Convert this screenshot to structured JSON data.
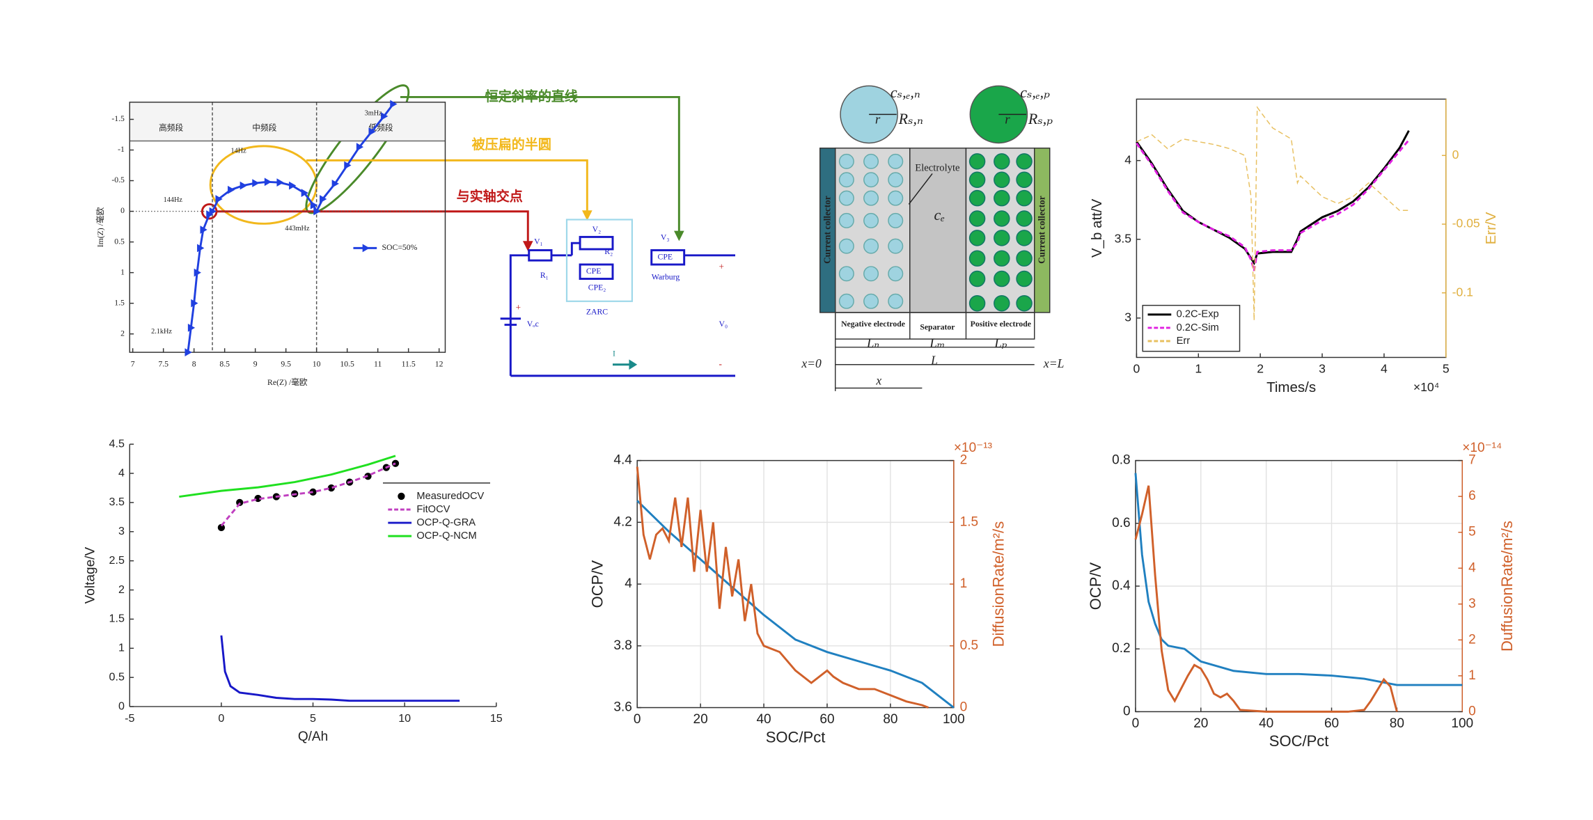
{
  "chart_data": [
    {
      "type": "line",
      "x_label": "Re(Z) /毫欧",
      "y_label": "Im(Z) /毫欧",
      "y_inverted": true,
      "xlim": [
        6.95,
        12.1
      ],
      "xticks": [
        7,
        7.5,
        8,
        8.5,
        9,
        9.5,
        10,
        10.5,
        11,
        11.5,
        12
      ],
      "ylim": [
        -1.78,
        2.3
      ],
      "yticks": [
        -1.5,
        -1,
        -0.5,
        0,
        0.5,
        1,
        1.5,
        2
      ],
      "regions": [
        {
          "label": "高频段",
          "from": 6.95,
          "to": 8.3
        },
        {
          "label": "中频段",
          "from": 8.3,
          "to": 10
        },
        {
          "label": "低频段",
          "from": 10,
          "to": 12.1
        }
      ],
      "annotations": [
        "2.1kHz",
        "144Hz",
        "14Hz",
        "443mHz",
        "3mHz"
      ],
      "callouts": [
        {
          "text": "恒定斜率的直线",
          "color": "#4a8a2a"
        },
        {
          "text": "被压扁的半圆",
          "color": "#f2b81c"
        },
        {
          "text": "与实轴交点",
          "color": "#c01818"
        }
      ],
      "legend": "center-right",
      "series": [
        {
          "name": "SOC=50%",
          "color": "#2040e0",
          "marker": "triangle",
          "x": [
            7.9,
            7.95,
            8.0,
            8.05,
            8.1,
            8.15,
            8.25,
            8.3,
            8.4,
            8.6,
            8.8,
            9.0,
            9.2,
            9.4,
            9.6,
            9.8,
            9.95,
            10.0,
            10.1,
            10.3,
            10.5,
            10.7,
            10.9,
            11.1,
            11.25
          ],
          "values": [
            2.3,
            1.9,
            1.5,
            1.0,
            0.6,
            0.3,
            0.05,
            0,
            -0.2,
            -0.35,
            -0.42,
            -0.46,
            -0.48,
            -0.47,
            -0.42,
            -0.3,
            -0.1,
            0,
            -0.2,
            -0.45,
            -0.75,
            -1.05,
            -1.3,
            -1.55,
            -1.75
          ]
        }
      ]
    },
    {
      "type": "line",
      "x_label": "Times/s",
      "x_scale_label": "×10⁴",
      "y_label": "V_b att/V",
      "y2_label": "Err/V",
      "y2_color": "#e0b040",
      "xlim": [
        0,
        5
      ],
      "xticks": [
        0,
        1,
        2,
        3,
        4,
        5
      ],
      "ylim": [
        2.75,
        4.39
      ],
      "yticks": [
        3,
        3.5,
        4
      ],
      "y2lim": [
        -0.147,
        0.041
      ],
      "y2ticks": [
        -0.1,
        -0.05,
        0
      ],
      "legend": "bottom-left",
      "x": [
        0,
        0.25,
        0.5,
        0.75,
        1,
        1.25,
        1.5,
        1.75,
        1.85,
        1.9,
        1.95,
        2.2,
        2.5,
        2.6,
        2.65,
        3,
        3.25,
        3.5,
        3.75,
        4,
        4.25,
        4.4
      ],
      "series": [
        {
          "name": "0.2C-Exp",
          "color": "#000000",
          "values": [
            4.12,
            3.98,
            3.82,
            3.68,
            3.61,
            3.56,
            3.51,
            3.44,
            3.38,
            3.35,
            3.41,
            3.42,
            3.42,
            3.5,
            3.55,
            3.64,
            3.68,
            3.74,
            3.83,
            3.95,
            4.08,
            4.19
          ]
        },
        {
          "name": "0.2C-Sim",
          "color": "#e020e0",
          "dash": true,
          "values": [
            4.11,
            3.97,
            3.81,
            3.67,
            3.61,
            3.56,
            3.52,
            3.45,
            3.37,
            3.3,
            3.42,
            3.43,
            3.43,
            3.48,
            3.54,
            3.62,
            3.66,
            3.72,
            3.82,
            3.94,
            4.06,
            4.13
          ]
        },
        {
          "name": "Err",
          "color": "#e8c060",
          "dash": true,
          "axis": "y2",
          "values": [
            0.01,
            0.015,
            0.005,
            0.012,
            0.01,
            0.008,
            0.005,
            0.0,
            -0.03,
            -0.12,
            0.035,
            0.02,
            0.012,
            -0.02,
            -0.015,
            -0.03,
            -0.035,
            -0.03,
            -0.02,
            -0.03,
            -0.04,
            -0.04
          ]
        }
      ]
    },
    {
      "type": "line",
      "x_label": "Q/Ah",
      "y_label": "Voltage/V",
      "xlim": [
        -5,
        15
      ],
      "xticks": [
        -5,
        0,
        5,
        10,
        15
      ],
      "ylim": [
        0,
        4.5
      ],
      "yticks": [
        0,
        0.5,
        1,
        1.5,
        2,
        2.5,
        3,
        3.5,
        4,
        4.5
      ],
      "legend": "top-right",
      "series": [
        {
          "name": "MeasuredOCV",
          "color": "#000000",
          "marker": "dot",
          "noline": true,
          "x": [
            0,
            1,
            2,
            3,
            4,
            5,
            6,
            7,
            8,
            9,
            9.5
          ],
          "values": [
            3.07,
            3.5,
            3.57,
            3.6,
            3.65,
            3.68,
            3.75,
            3.85,
            3.95,
            4.1,
            4.17
          ]
        },
        {
          "name": "FitOCV",
          "color": "#c040c0",
          "dash": true,
          "x": [
            0,
            1,
            2,
            3,
            4,
            5,
            6,
            7,
            8,
            9,
            9.5
          ],
          "values": [
            3.1,
            3.48,
            3.56,
            3.6,
            3.64,
            3.68,
            3.75,
            3.85,
            3.96,
            4.1,
            4.17
          ]
        },
        {
          "name": "OCP-Q-GRA",
          "color": "#1818c8",
          "x": [
            0,
            0.2,
            0.5,
            1,
            2,
            3,
            4,
            5,
            6,
            7,
            8,
            10,
            13
          ],
          "values": [
            1.22,
            0.6,
            0.35,
            0.24,
            0.2,
            0.15,
            0.13,
            0.13,
            0.12,
            0.1,
            0.1,
            0.1,
            0.1
          ]
        },
        {
          "name": "OCP-Q-NCM",
          "color": "#20e020",
          "x": [
            -2.3,
            0,
            2,
            4,
            6,
            8,
            9.5
          ],
          "values": [
            3.6,
            3.7,
            3.76,
            3.85,
            3.98,
            4.15,
            4.3
          ]
        }
      ]
    },
    {
      "type": "line",
      "x_label": "SOC/Pct",
      "y_label": "OCP/V",
      "y2_label": "DiffusionRate/m²/s",
      "y2_scale_label": "×10⁻¹³",
      "y2_color": "#d0602a",
      "grid": true,
      "xlim": [
        0,
        100
      ],
      "xticks": [
        0,
        20,
        40,
        60,
        80,
        100
      ],
      "ylim": [
        3.6,
        4.4
      ],
      "yticks": [
        3.6,
        3.8,
        4,
        4.2,
        4.4
      ],
      "y2lim": [
        0,
        2
      ],
      "y2ticks": [
        0,
        0.5,
        1,
        1.5,
        2
      ],
      "series": [
        {
          "color": "#2080c0",
          "x": [
            0,
            10,
            20,
            30,
            40,
            50,
            60,
            70,
            80,
            90,
            100
          ],
          "values": [
            4.27,
            4.17,
            4.08,
            3.99,
            3.9,
            3.82,
            3.78,
            3.75,
            3.72,
            3.68,
            3.6
          ]
        },
        {
          "color": "#d0602a",
          "axis": "y2",
          "x": [
            0,
            2,
            4,
            6,
            8,
            10,
            12,
            14,
            16,
            18,
            20,
            22,
            24,
            26,
            28,
            30,
            32,
            34,
            36,
            38,
            40,
            45,
            50,
            55,
            60,
            62,
            65,
            70,
            75,
            80,
            85,
            90,
            92
          ],
          "values": [
            1.95,
            1.4,
            1.2,
            1.4,
            1.45,
            1.35,
            1.7,
            1.3,
            1.7,
            1.1,
            1.6,
            1.1,
            1.5,
            0.8,
            1.3,
            0.9,
            1.2,
            0.7,
            1.0,
            0.6,
            0.5,
            0.45,
            0.3,
            0.2,
            0.3,
            0.25,
            0.2,
            0.15,
            0.15,
            0.1,
            0.05,
            0.02,
            0
          ]
        }
      ]
    },
    {
      "type": "line",
      "x_label": "SOC/Pct",
      "y_label": "OCP/V",
      "y2_label": "DuffusionRate/m²/s",
      "y2_scale_label": "×10⁻¹⁴",
      "y2_color": "#d0602a",
      "grid": true,
      "xlim": [
        0,
        100
      ],
      "xticks": [
        0,
        20,
        40,
        60,
        80,
        100
      ],
      "ylim": [
        0,
        0.8
      ],
      "yticks": [
        0,
        0.2,
        0.4,
        0.6,
        0.8
      ],
      "y2lim": [
        0,
        7
      ],
      "y2ticks": [
        0,
        1,
        2,
        3,
        4,
        5,
        6,
        7
      ],
      "series": [
        {
          "color": "#2080c0",
          "x": [
            0,
            2,
            4,
            6,
            8,
            10,
            15,
            20,
            30,
            40,
            50,
            60,
            70,
            75,
            80,
            90,
            100
          ],
          "values": [
            0.76,
            0.5,
            0.35,
            0.28,
            0.23,
            0.21,
            0.2,
            0.16,
            0.13,
            0.12,
            0.12,
            0.115,
            0.105,
            0.095,
            0.085,
            0.085,
            0.085
          ]
        },
        {
          "color": "#d0602a",
          "axis": "y2",
          "x": [
            0,
            2,
            4,
            6,
            8,
            10,
            12,
            16,
            18,
            20,
            22,
            24,
            26,
            28,
            30,
            32,
            40,
            60,
            65,
            70,
            72,
            76,
            78,
            80
          ],
          "values": [
            4.8,
            5.5,
            6.3,
            3.8,
            1.7,
            0.6,
            0.3,
            1.0,
            1.3,
            1.2,
            0.9,
            0.5,
            0.4,
            0.5,
            0.3,
            0.05,
            0,
            0,
            0,
            0.05,
            0.3,
            0.9,
            0.7,
            0
          ]
        }
      ]
    }
  ],
  "electrode_diagram": {
    "collector": "Current collector",
    "electrolyte": "Electrolyte",
    "ce": "cₑ",
    "negative": "Negative electrode",
    "separator": "Separator",
    "positive": "Positive electrode",
    "ln": "Lₙ",
    "lm": "Lₘ",
    "lp": "Lₚ",
    "l": "L",
    "x0": "x=0",
    "xl": "x=L",
    "x": "x",
    "csn": "cₛ,ₑ,ₙ",
    "rsn": "Rₛ,ₙ",
    "r": "r",
    "csp": "cₛ,ₑ,ₚ",
    "rsp": "Rₛ,ₚ"
  },
  "circuit": {
    "v1": "V₁",
    "r1": "R₁",
    "v2": "V₂",
    "r2": "R₂",
    "cpe": "CPE",
    "cpe2": "CPE₂",
    "zarc": "ZARC",
    "v3": "V₃",
    "warburg": "Warburg",
    "voc": "Vₒc",
    "vo": "V₀",
    "i": "I",
    "plus": "+",
    "minus": "-"
  }
}
